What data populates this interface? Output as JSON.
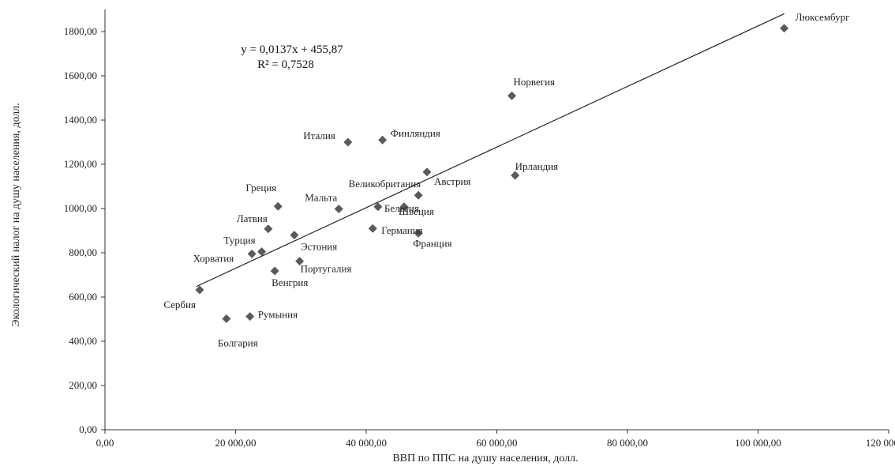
{
  "chart_data": {
    "type": "scatter",
    "xlabel": "ВВП  по ППС  на душу населения, долл.",
    "ylabel": "Экологический налог на душу населения, долл.",
    "xlim": [
      0,
      120000
    ],
    "ylim": [
      0,
      1900
    ],
    "x_ticks": [
      0,
      20000,
      40000,
      60000,
      80000,
      100000,
      120000
    ],
    "x_tick_labels": [
      "0,00",
      "20 000,00",
      "40 000,00",
      "60 000,00",
      "80 000,00",
      "100 000,00",
      "120 000,00"
    ],
    "y_ticks": [
      0,
      200,
      400,
      600,
      800,
      1000,
      1200,
      1400,
      1600,
      1800
    ],
    "y_tick_labels": [
      "0,00",
      "200,00",
      "400,00",
      "600,00",
      "800,00",
      "1000,00",
      "1200,00",
      "1400,00",
      "1600,00",
      "1800,00"
    ],
    "grid": false,
    "marker_color": "#5a5a5a",
    "points": [
      {
        "label": "Люксембург",
        "x": 104000,
        "y": 1815
      },
      {
        "label": "Норвегия",
        "x": 62300,
        "y": 1510
      },
      {
        "label": "Финляндия",
        "x": 42500,
        "y": 1310
      },
      {
        "label": "Италия",
        "x": 37200,
        "y": 1300
      },
      {
        "label": "Австрия",
        "x": 49300,
        "y": 1165
      },
      {
        "label": "Ирландия",
        "x": 62800,
        "y": 1150
      },
      {
        "label": "Великобритания",
        "x": 48000,
        "y": 1060
      },
      {
        "label": "Швеция",
        "x": 45800,
        "y": 1008
      },
      {
        "label": "Греция",
        "x": 26500,
        "y": 1010
      },
      {
        "label": "Мальта",
        "x": 35800,
        "y": 998
      },
      {
        "label": "Бельгия",
        "x": 41800,
        "y": 1008
      },
      {
        "label": "Латвия",
        "x": 25000,
        "y": 908
      },
      {
        "label": "Германия",
        "x": 41000,
        "y": 910
      },
      {
        "label": "Эстония",
        "x": 29000,
        "y": 880
      },
      {
        "label": "Франция",
        "x": 48000,
        "y": 888
      },
      {
        "label": "Турция",
        "x": 24000,
        "y": 805
      },
      {
        "label": "Хорватия",
        "x": 22500,
        "y": 795
      },
      {
        "label": "Португалия",
        "x": 29800,
        "y": 762
      },
      {
        "label": "Венгрия",
        "x": 26000,
        "y": 718
      },
      {
        "label": "Сербия",
        "x": 14500,
        "y": 632
      },
      {
        "label": "Румыния",
        "x": 22200,
        "y": 512
      },
      {
        "label": "Болгария",
        "x": 18600,
        "y": 502
      }
    ],
    "trendline": {
      "slope": 0.0137,
      "intercept": 455.87,
      "x_range": [
        14000,
        104000
      ],
      "equation": "y = 0,0137x + 455,87",
      "r2": "R² = 0,7528"
    }
  }
}
